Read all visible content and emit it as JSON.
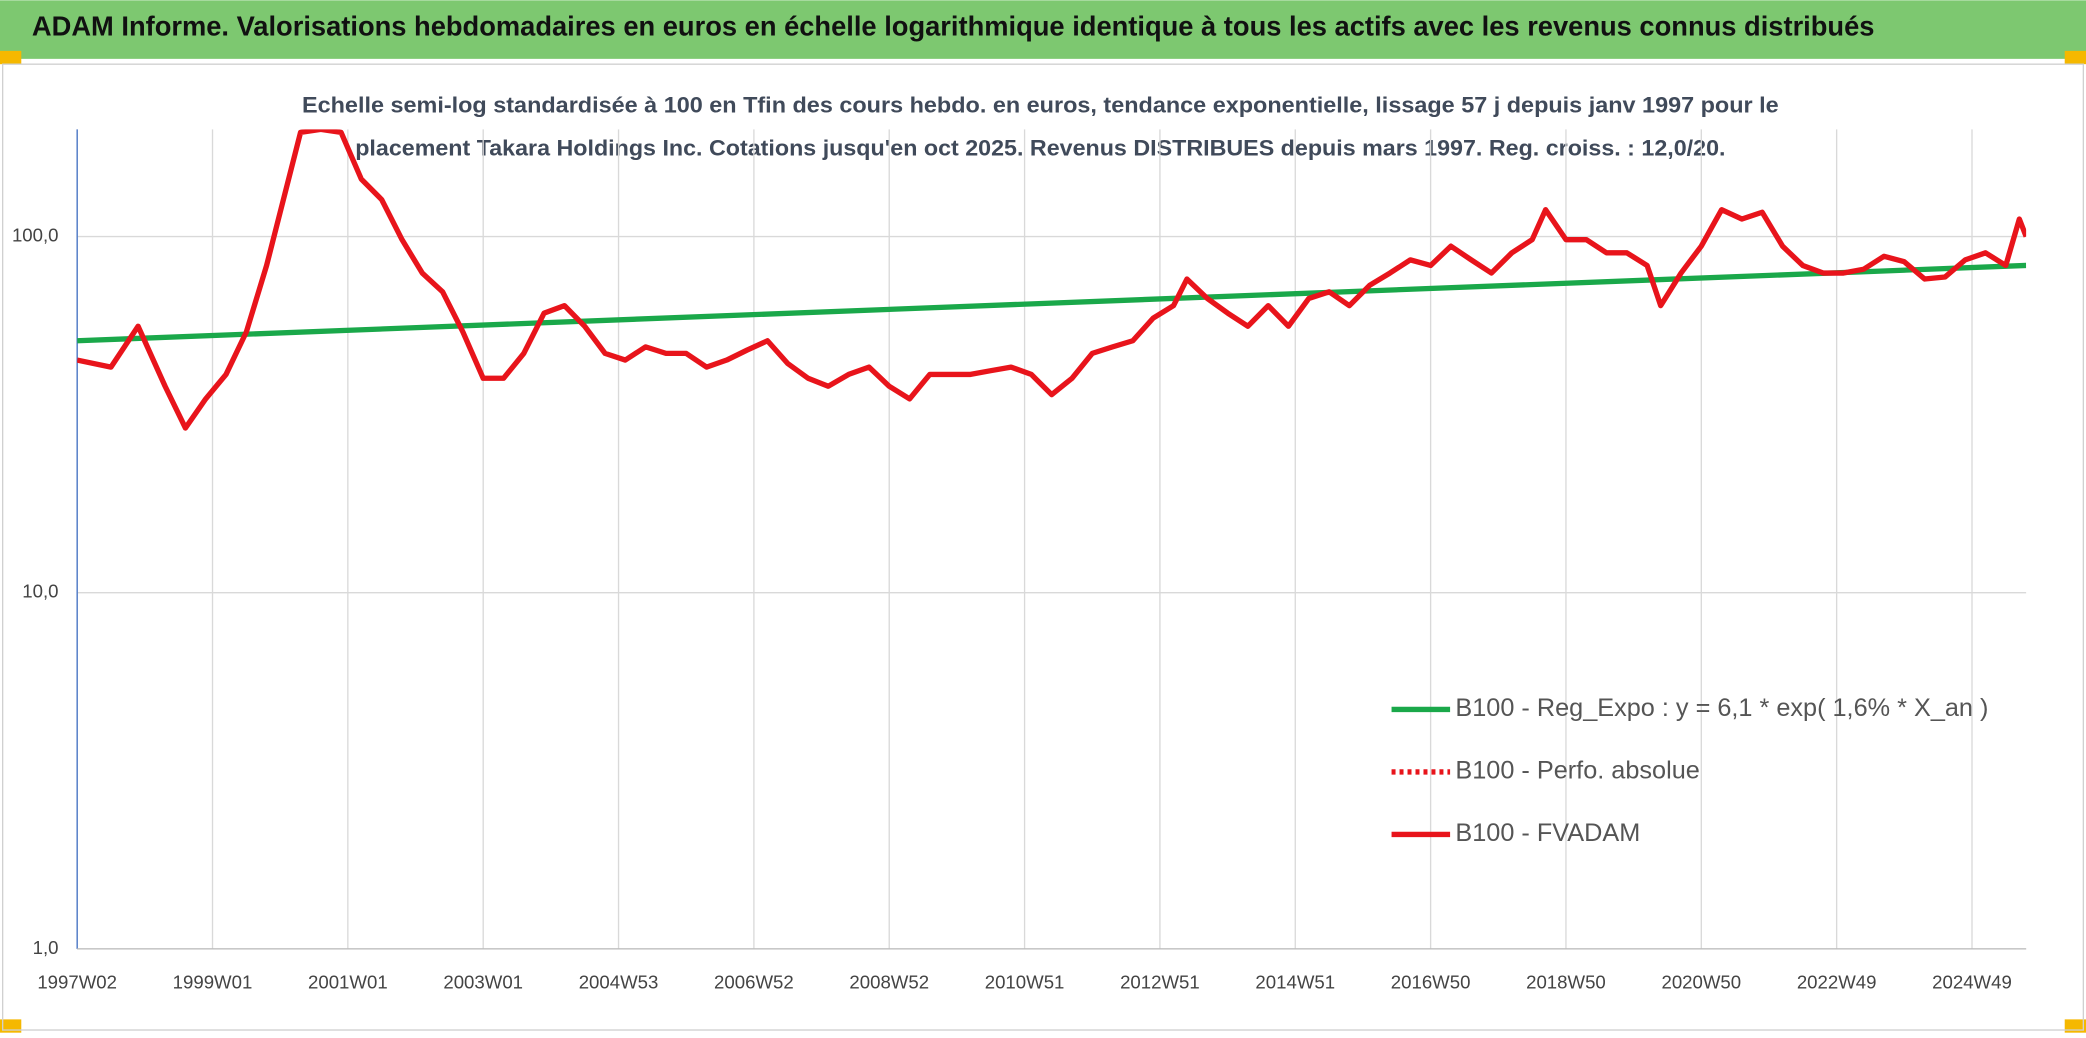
{
  "header": {
    "title": "ADAM Informe. Valorisations hebdomadaires en euros en échelle logarithmique identique à tous les actifs avec les revenus connus distribués"
  },
  "chart_data": {
    "type": "line",
    "subtitle": [
      "Echelle semi-log standardisée à 100 en Tfin des cours hebdo. en euros, tendance exponentielle, lissage 57 j depuis janv 1997 pour le",
      "placement Takara Holdings Inc. Cotations jusqu'en oct 2025. Revenus DISTRIBUES depuis mars 1997. Reg. croiss. : 12,0/20."
    ],
    "log_y": true,
    "grid": true,
    "legend": "lower right",
    "ylim": [
      1,
      200
    ],
    "yticks": [
      {
        "value": 1,
        "label": "1,0"
      },
      {
        "value": 10,
        "label": "10,0"
      },
      {
        "value": 100,
        "label": "100,0"
      }
    ],
    "xlim": [
      1997.0,
      2025.8
    ],
    "xticks": [
      {
        "value": 1997.0,
        "label": "1997W02"
      },
      {
        "value": 1999.0,
        "label": "1999W01"
      },
      {
        "value": 2001.0,
        "label": "2001W01"
      },
      {
        "value": 2003.0,
        "label": "2003W01"
      },
      {
        "value": 2005.0,
        "label": "2004W53"
      },
      {
        "value": 2007.0,
        "label": "2006W52"
      },
      {
        "value": 2009.0,
        "label": "2008W52"
      },
      {
        "value": 2011.0,
        "label": "2010W51"
      },
      {
        "value": 2013.0,
        "label": "2012W51"
      },
      {
        "value": 2015.0,
        "label": "2014W51"
      },
      {
        "value": 2017.0,
        "label": "2016W50"
      },
      {
        "value": 2019.0,
        "label": "2018W50"
      },
      {
        "value": 2021.0,
        "label": "2020W50"
      },
      {
        "value": 2023.0,
        "label": "2022W49"
      },
      {
        "value": 2025.0,
        "label": "2024W49"
      }
    ],
    "series": [
      {
        "name": "B100 - Reg_Expo : y = 6,1 * exp( 1,6% *  X_an )",
        "color": "#1aa84a",
        "style": "solid",
        "x": [
          1997.0,
          2025.8
        ],
        "values": [
          51,
          83
        ]
      },
      {
        "name": "B100 - Perfo. absolue",
        "color": "#e8141b",
        "style": "dotted"
      },
      {
        "name": "B100 - FVADAM",
        "color": "#e8141b",
        "style": "solid",
        "x": [
          1997.0,
          1997.5,
          1997.9,
          1998.3,
          1998.6,
          1998.9,
          1999.2,
          1999.5,
          1999.8,
          2000.0,
          2000.3,
          2000.6,
          2000.9,
          2001.2,
          2001.5,
          2001.8,
          2002.1,
          2002.4,
          2002.7,
          2003.0,
          2003.3,
          2003.6,
          2003.9,
          2004.2,
          2004.5,
          2004.8,
          2005.1,
          2005.4,
          2005.7,
          2006.0,
          2006.3,
          2006.6,
          2006.9,
          2007.2,
          2007.5,
          2007.8,
          2008.1,
          2008.4,
          2008.7,
          2009.0,
          2009.3,
          2009.6,
          2009.9,
          2010.2,
          2010.5,
          2010.8,
          2011.1,
          2011.4,
          2011.7,
          2012.0,
          2012.3,
          2012.6,
          2012.9,
          2013.2,
          2013.4,
          2013.7,
          2014.0,
          2014.3,
          2014.6,
          2014.9,
          2015.2,
          2015.5,
          2015.8,
          2016.1,
          2016.4,
          2016.7,
          2017.0,
          2017.3,
          2017.6,
          2017.9,
          2018.2,
          2018.5,
          2018.7,
          2019.0,
          2019.3,
          2019.6,
          2019.9,
          2020.2,
          2020.4,
          2020.7,
          2021.0,
          2021.3,
          2021.6,
          2021.9,
          2022.2,
          2022.5,
          2022.8,
          2023.1,
          2023.4,
          2023.7,
          2024.0,
          2024.3,
          2024.6,
          2024.9,
          2025.2,
          2025.5,
          2025.7,
          2025.8
        ],
        "values": [
          45,
          43,
          56,
          38,
          29,
          35,
          41,
          54,
          83,
          117,
          196,
          200,
          196,
          145,
          127,
          98,
          79,
          70,
          54,
          40,
          40,
          47,
          61,
          64,
          56,
          47,
          45,
          49,
          47,
          47,
          43,
          45,
          48,
          51,
          44,
          40,
          38,
          41,
          43,
          38,
          35,
          41,
          41,
          41,
          42,
          43,
          41,
          36,
          40,
          47,
          49,
          51,
          59,
          64,
          76,
          67,
          61,
          56,
          64,
          56,
          67,
          70,
          64,
          73,
          79,
          86,
          83,
          94,
          86,
          79,
          90,
          98,
          119,
          98,
          98,
          90,
          90,
          83,
          64,
          79,
          94,
          119,
          112,
          117,
          94,
          83,
          79,
          79,
          81,
          88,
          85,
          76,
          77,
          86,
          90,
          83,
          112,
          100
        ]
      }
    ]
  }
}
